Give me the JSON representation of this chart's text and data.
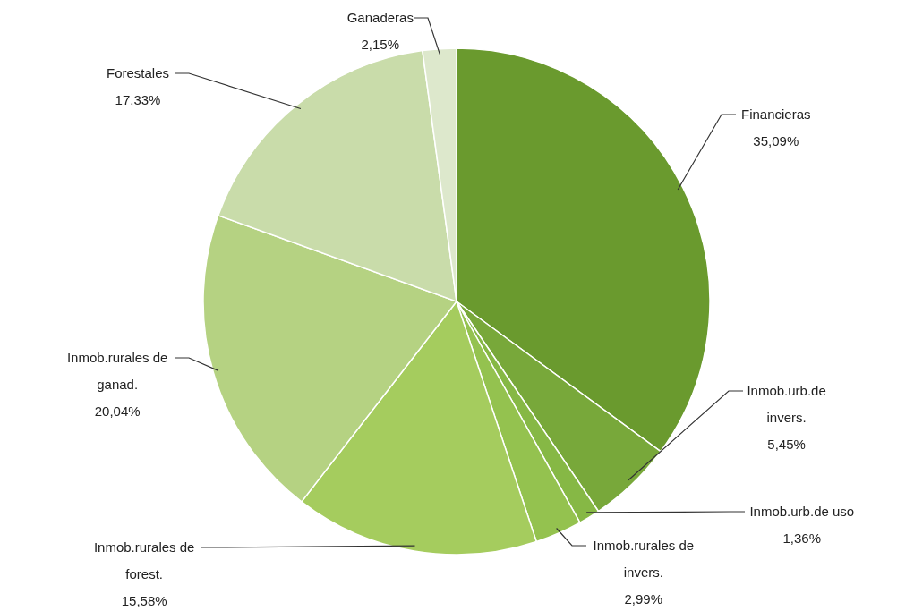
{
  "chart_data": {
    "type": "pie",
    "categories": [
      "Financieras",
      "Inmob.urb.de invers.",
      "Inmob.urb.de uso",
      "Inmob.rurales de invers.",
      "Inmob.rurales de forest.",
      "Inmob.rurales de ganad.",
      "Forestales",
      "Ganaderas"
    ],
    "values": [
      35.09,
      5.45,
      1.36,
      2.99,
      15.58,
      20.04,
      17.33,
      2.15
    ],
    "value_labels": [
      "35,09%",
      "5,45%",
      "1,36%",
      "2,99%",
      "15,58%",
      "20,04%",
      "17,33%",
      "2,15%"
    ],
    "colors": [
      "#6a9a2e",
      "#78a83a",
      "#86b845",
      "#94c24f",
      "#a5cc5e",
      "#b5d282",
      "#c9dcaa",
      "#dde8cc"
    ],
    "legend": false
  }
}
